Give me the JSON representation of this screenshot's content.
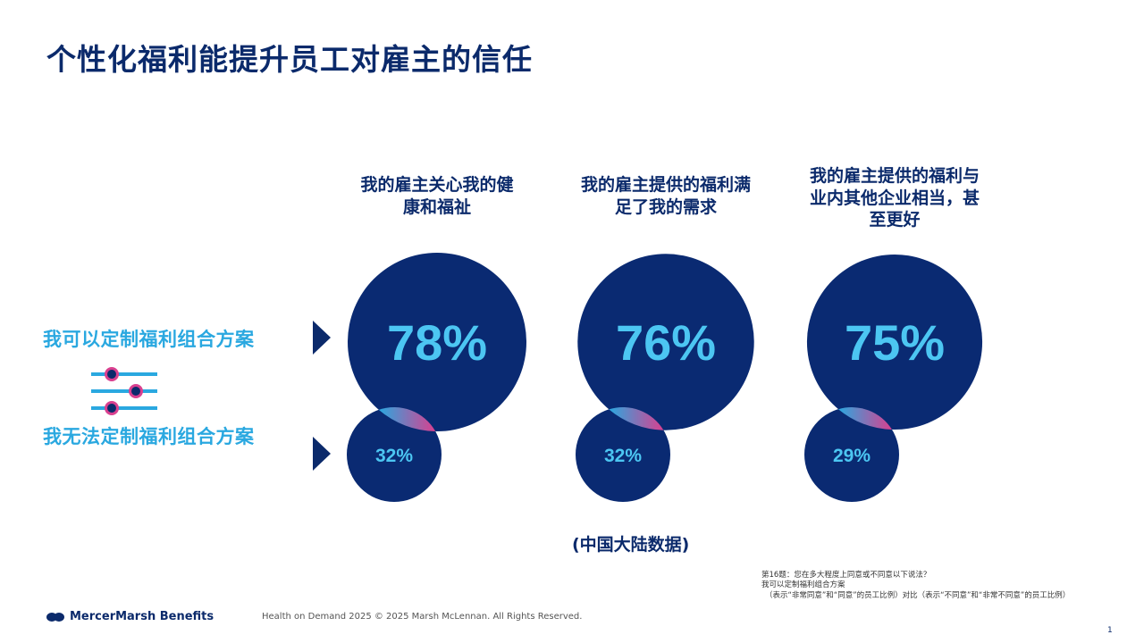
{
  "title": "个性化福利能提升员工对雇主的信任",
  "row_labels": {
    "can_customize": "我可以定制福利组合方案",
    "cannot_customize": "我无法定制福利组合方案"
  },
  "region_note": "(中国大陆数据)",
  "footnote": {
    "line1": "第16题：您在多大程度上同意或不同意以下说法？",
    "line2": "我可以定制福利组合方案",
    "line3": "（表示“非常同意”和“同意”的员工比例）对比（表示“不同意”和“非常不同意”的员工比例）"
  },
  "brand": "MercerMarsh Benefits",
  "footer": "Health on Demand 2025 © 2025 Marsh McLennan. All Rights Reserved.",
  "page_number": "1",
  "colors": {
    "navy": "#0b2a6b",
    "circle": "#0a2a72",
    "light_blue": "#4cc6f2",
    "pink": "#d9408f"
  },
  "chart_data": {
    "type": "proportional-circles",
    "title": "个性化福利能提升员工对雇主的信任",
    "categories": [
      "我的雇主关心我的健康和福祉",
      "我的雇主提供的福利满足了我的需求",
      "我的雇主提供的福利与业内其他企业相当，甚至更好"
    ],
    "category_lines": [
      [
        "我的雇主关心我的健",
        "康和福祉"
      ],
      [
        "我的雇主提供的福利满",
        "足了我的需求"
      ],
      [
        "我的雇主提供的福利与",
        "业内其他企业相当，甚",
        "至更好"
      ]
    ],
    "series": [
      {
        "name": "我可以定制福利组合方案",
        "values": [
          78,
          76,
          75
        ],
        "labels": [
          "78%",
          "76%",
          "75%"
        ]
      },
      {
        "name": "我无法定制福利组合方案",
        "values": [
          32,
          32,
          29
        ],
        "labels": [
          "32%",
          "32%",
          "29%"
        ]
      }
    ]
  }
}
